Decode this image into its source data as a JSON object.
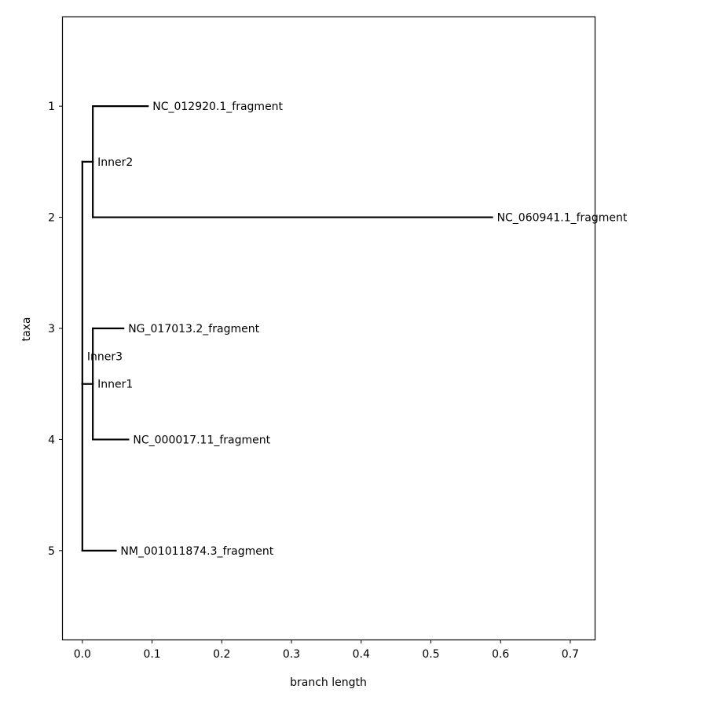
{
  "chart_data": {
    "type": "tree",
    "title": "",
    "xlabel": "branch length",
    "ylabel": "taxa",
    "xlim": [
      -0.028,
      0.735
    ],
    "ylim": [
      5.8,
      0.2
    ],
    "xticks": [
      0.0,
      0.1,
      0.2,
      0.3,
      0.4,
      0.5,
      0.6,
      0.7
    ],
    "xtick_labels": [
      "0.0",
      "0.1",
      "0.2",
      "0.3",
      "0.4",
      "0.5",
      "0.6",
      "0.7"
    ],
    "yticks": [
      1,
      2,
      3,
      4,
      5
    ],
    "ytick_labels": [
      "1",
      "2",
      "3",
      "4",
      "5"
    ],
    "grid": false,
    "line_color": "#000000",
    "nodes": [
      {
        "id": "root",
        "x": 0.0,
        "y": 3.5,
        "label": ""
      },
      {
        "id": "inner2",
        "x": 0.015,
        "y": 1.5,
        "label": "Inner2"
      },
      {
        "id": "inner1",
        "x": 0.015,
        "y": 3.5,
        "label": "Inner1"
      },
      {
        "id": "inner3",
        "x": 0.0,
        "y": 3.25,
        "label": "Inner3"
      },
      {
        "id": "t1",
        "x": 0.094,
        "y": 1,
        "label": "NC_012920.1_fragment"
      },
      {
        "id": "t2",
        "x": 0.588,
        "y": 2,
        "label": "NC_060941.1_fragment"
      },
      {
        "id": "t3",
        "x": 0.059,
        "y": 3,
        "label": "NG_017013.2_fragment"
      },
      {
        "id": "t4",
        "x": 0.066,
        "y": 4,
        "label": "NC_000017.11_fragment"
      },
      {
        "id": "t5",
        "x": 0.048,
        "y": 5,
        "label": "NM_001011874.3_fragment"
      }
    ],
    "edges": [
      {
        "from": "root",
        "to": "inner2"
      },
      {
        "from": "root",
        "to": "inner1"
      },
      {
        "from": "root",
        "to": "t5"
      },
      {
        "from": "inner2",
        "to": "t1"
      },
      {
        "from": "inner2",
        "to": "t2"
      },
      {
        "from": "inner1",
        "to": "t3"
      },
      {
        "from": "inner1",
        "to": "t4"
      }
    ]
  }
}
